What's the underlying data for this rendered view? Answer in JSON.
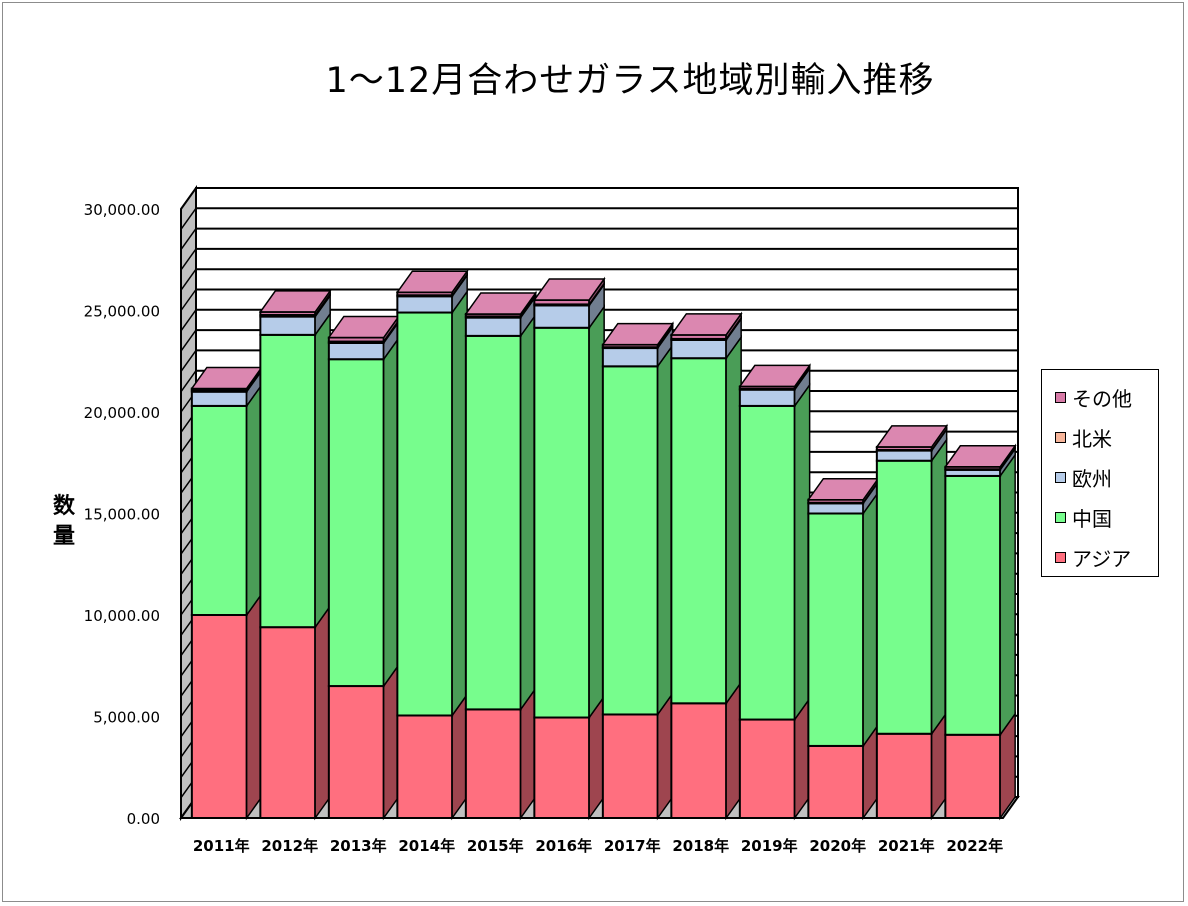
{
  "chart_data": {
    "type": "bar",
    "stacked": true,
    "style": "3d",
    "title": "1～12月合わせガラス地域別輸入推移",
    "ylabel": "数量",
    "xlabel": "",
    "ylim": [
      0,
      30000
    ],
    "yticks": [
      "0.00",
      "5,000.00",
      "10,000.00",
      "15,000.00",
      "20,000.00",
      "25,000.00",
      "30,000.00"
    ],
    "grid": true,
    "legend_position": "right",
    "categories": [
      "2011年",
      "2012年",
      "2013年",
      "2014年",
      "2015年",
      "2016年",
      "2017年",
      "2018年",
      "2019年",
      "2020年",
      "2021年",
      "2022年"
    ],
    "series": [
      {
        "name": "アジア",
        "color": "#ff6f7f",
        "values": [
          10000,
          9400,
          6500,
          5050,
          5350,
          4950,
          5100,
          5650,
          4850,
          3550,
          4150,
          4100
        ]
      },
      {
        "name": "中国",
        "color": "#77fd8d",
        "values": [
          10300,
          14400,
          16100,
          19850,
          18400,
          19200,
          17150,
          17000,
          15450,
          11450,
          13450,
          12750
        ]
      },
      {
        "name": "欧州",
        "color": "#b6cce9",
        "values": [
          700,
          900,
          800,
          800,
          900,
          1100,
          900,
          900,
          800,
          500,
          500,
          300
        ]
      },
      {
        "name": "北米",
        "color": "#f7b59a",
        "values": [
          60,
          80,
          70,
          50,
          60,
          50,
          40,
          50,
          40,
          30,
          30,
          30
        ]
      },
      {
        "name": "その他",
        "color": "#d77aa7",
        "values": [
          100,
          150,
          200,
          150,
          120,
          220,
          130,
          200,
          120,
          150,
          150,
          120
        ]
      }
    ]
  }
}
